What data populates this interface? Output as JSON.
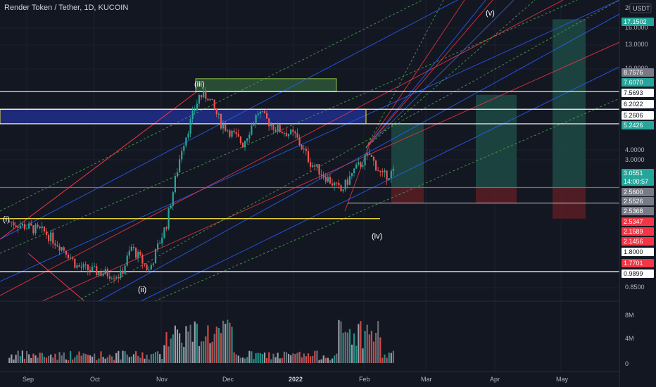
{
  "header": {
    "title": "Render Token / Tether, 1D, KUCOIN",
    "currency_badge": "USDT"
  },
  "colors": {
    "background": "#131722",
    "up": "#26a69a",
    "down": "#ef5350",
    "blue_channel": "#2962ff",
    "red_channel": "#f23645",
    "green_dashed": "#4caf50",
    "zone_blue": "#1e2a7a",
    "zone_green": "#2e5a3a"
  },
  "chart_data": {
    "type": "candlestick",
    "symbol": "RNDR/USDT",
    "timeframe": "1D",
    "exchange": "KUCOIN",
    "y_scale": "log",
    "y_range": [
      0.72,
      20
    ],
    "x_ticks": [
      "Sep",
      "Oct",
      "Nov",
      "Dec",
      "2022",
      "Feb",
      "Mar",
      "Apr",
      "May"
    ],
    "y_ticks": [
      "20",
      "16.0000",
      "13.0000",
      "10.0000",
      "4.0000",
      "3.0000",
      "0.8500"
    ],
    "price_labels": [
      {
        "value": "17.1502",
        "color": "#26a69a"
      },
      {
        "value": "8.7576",
        "color": "#787b86"
      },
      {
        "value": "7.6070",
        "color": "#26a69a"
      },
      {
        "value": "7.5693",
        "color": "#ffffff"
      },
      {
        "value": "6.2022",
        "color": "#ffffff"
      },
      {
        "value": "5.2606",
        "color": "#ffffff"
      },
      {
        "value": "5.2426",
        "color": "#26a69a"
      },
      {
        "value": "3.0551",
        "color": "#26a69a"
      },
      {
        "value": "14:00:57",
        "color": "#26a69a"
      },
      {
        "value": "2.5600",
        "color": "#787b86"
      },
      {
        "value": "2.5526",
        "color": "#787b86"
      },
      {
        "value": "2.5368",
        "color": "#787b86"
      },
      {
        "value": "2.5347",
        "color": "#f23645"
      },
      {
        "value": "2.1589",
        "color": "#f23645"
      },
      {
        "value": "2.1456",
        "color": "#f23645"
      },
      {
        "value": "1.8000",
        "color": "#ffffff"
      },
      {
        "value": "1.7701",
        "color": "#f23645"
      },
      {
        "value": "0.9899",
        "color": "#ffffff"
      }
    ],
    "volume_ticks": [
      "8M",
      "4M",
      "0"
    ],
    "wave_labels": [
      "(i)",
      "(ii)",
      "(iii)",
      "(iv)",
      "(v)"
    ],
    "horizontal_levels": [
      {
        "value": 7.5693,
        "color": "#ffffff"
      },
      {
        "value": 6.2022,
        "color": "#ffffff"
      },
      {
        "value": 5.2606,
        "color": "#ffffff"
      },
      {
        "value": 2.56,
        "color": "#f23645"
      },
      {
        "value": 1.8,
        "color": "#ffeb3b"
      },
      {
        "value": 0.9899,
        "color": "#ffffff"
      }
    ],
    "zones": [
      {
        "name": "blue-supply",
        "y_top": 6.2022,
        "y_bottom": 5.2606
      },
      {
        "name": "green-top",
        "y_top": 8.7576,
        "y_bottom": 7.607
      }
    ],
    "anchors": [
      {
        "date": "2021-08-24",
        "price": 1.75
      },
      {
        "date": "2021-09-10",
        "price": 1.55
      },
      {
        "date": "2021-09-20",
        "price": 1.25
      },
      {
        "date": "2021-09-25",
        "price": 1.05
      },
      {
        "date": "2021-10-05",
        "price": 0.98
      },
      {
        "date": "2021-10-15",
        "price": 0.95
      },
      {
        "date": "2021-10-20",
        "price": 1.3
      },
      {
        "date": "2021-10-28",
        "price": 1.0
      },
      {
        "date": "2021-11-05",
        "price": 1.7
      },
      {
        "date": "2021-11-12",
        "price": 4.0
      },
      {
        "date": "2021-11-20",
        "price": 7.2
      },
      {
        "date": "2021-11-24",
        "price": 7.2
      },
      {
        "date": "2021-11-30",
        "price": 5.3
      },
      {
        "date": "2021-12-10",
        "price": 4.2
      },
      {
        "date": "2021-12-17",
        "price": 6.0
      },
      {
        "date": "2021-12-25",
        "price": 5.0
      },
      {
        "date": "2022-01-03",
        "price": 4.6
      },
      {
        "date": "2022-01-10",
        "price": 3.4
      },
      {
        "date": "2022-01-20",
        "price": 2.7
      },
      {
        "date": "2022-01-24",
        "price": 2.45
      },
      {
        "date": "2022-01-30",
        "price": 3.1
      },
      {
        "date": "2022-02-06",
        "price": 3.7
      },
      {
        "date": "2022-02-12",
        "price": 2.9
      },
      {
        "date": "2022-02-17",
        "price": 3.05
      }
    ]
  }
}
